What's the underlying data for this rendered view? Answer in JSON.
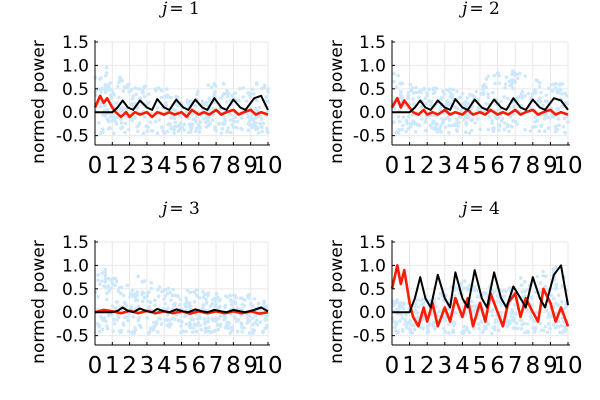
{
  "chart_data": [
    {
      "type": "scatter+line",
      "title": "j = 1",
      "title_j": "j",
      "title_eq": "= 1",
      "ylabel": "normed power",
      "xlim": [
        0,
        10
      ],
      "ylim": [
        -0.7,
        1.5
      ],
      "yticks": [
        "-0.5",
        "0.0",
        "0.5",
        "1.0",
        "1.5"
      ],
      "ytick_values": [
        -0.5,
        0.0,
        0.5,
        1.0,
        1.5
      ],
      "xticks": [
        "0",
        "1",
        "2",
        "3",
        "4",
        "5",
        "6",
        "7",
        "8",
        "9",
        "10"
      ],
      "grid": true,
      "scatter_envelope": [
        [
          0.2,
          1.0
        ],
        [
          0.5,
          1.2
        ],
        [
          1.0,
          0.5
        ],
        [
          1.5,
          0.8
        ],
        [
          2.0,
          0.6
        ],
        [
          2.5,
          0.5
        ],
        [
          3.0,
          0.6
        ],
        [
          3.5,
          0.5
        ],
        [
          4.0,
          0.6
        ],
        [
          4.5,
          0.5
        ],
        [
          5.0,
          0.4
        ],
        [
          5.5,
          0.3
        ],
        [
          6.0,
          0.5
        ],
        [
          6.5,
          0.6
        ],
        [
          7.0,
          0.7
        ],
        [
          7.5,
          0.6
        ],
        [
          8.0,
          0.5
        ],
        [
          8.5,
          0.6
        ],
        [
          9.0,
          0.5
        ],
        [
          9.5,
          0.7
        ],
        [
          10.0,
          0.5
        ]
      ],
      "model_curve": [
        [
          0.0,
          0.0
        ],
        [
          1.0,
          0.0
        ],
        [
          1.3,
          0.1
        ],
        [
          1.6,
          0.25
        ],
        [
          1.9,
          0.1
        ],
        [
          2.2,
          0.05
        ],
        [
          2.6,
          0.25
        ],
        [
          3.0,
          0.1
        ],
        [
          3.3,
          0.05
        ],
        [
          3.6,
          0.28
        ],
        [
          4.0,
          0.1
        ],
        [
          4.3,
          0.05
        ],
        [
          4.7,
          0.27
        ],
        [
          5.1,
          0.1
        ],
        [
          5.4,
          0.05
        ],
        [
          5.8,
          0.27
        ],
        [
          6.2,
          0.1
        ],
        [
          6.5,
          0.05
        ],
        [
          6.9,
          0.3
        ],
        [
          7.3,
          0.1
        ],
        [
          7.6,
          0.05
        ],
        [
          8.0,
          0.27
        ],
        [
          8.4,
          0.1
        ],
        [
          8.7,
          0.05
        ],
        [
          9.2,
          0.3
        ],
        [
          9.6,
          0.35
        ],
        [
          10.0,
          0.05
        ]
      ],
      "measured_curve": [
        [
          0.0,
          0.1
        ],
        [
          0.3,
          0.35
        ],
        [
          0.5,
          0.2
        ],
        [
          0.7,
          0.3
        ],
        [
          1.0,
          0.1
        ],
        [
          1.2,
          0.0
        ],
        [
          1.5,
          -0.1
        ],
        [
          1.8,
          0.0
        ],
        [
          2.0,
          -0.1
        ],
        [
          2.3,
          0.0
        ],
        [
          2.6,
          -0.05
        ],
        [
          3.0,
          0.0
        ],
        [
          3.3,
          -0.1
        ],
        [
          3.6,
          0.0
        ],
        [
          4.0,
          -0.05
        ],
        [
          4.3,
          0.0
        ],
        [
          4.6,
          -0.05
        ],
        [
          5.0,
          0.0
        ],
        [
          5.3,
          -0.1
        ],
        [
          5.6,
          0.05
        ],
        [
          6.0,
          -0.05
        ],
        [
          6.3,
          0.0
        ],
        [
          6.6,
          -0.05
        ],
        [
          7.0,
          0.05
        ],
        [
          7.3,
          -0.05
        ],
        [
          7.6,
          0.0
        ],
        [
          8.0,
          0.05
        ],
        [
          8.3,
          -0.05
        ],
        [
          8.6,
          0.0
        ],
        [
          9.0,
          0.05
        ],
        [
          9.3,
          -0.05
        ],
        [
          9.6,
          0.0
        ],
        [
          10.0,
          -0.05
        ]
      ]
    },
    {
      "type": "scatter+line",
      "title": "j = 2",
      "title_j": "j",
      "title_eq": "= 2",
      "ylabel": "normed power",
      "xlim": [
        0,
        10
      ],
      "ylim": [
        -0.7,
        1.5
      ],
      "yticks": [
        "-0.5",
        "0.0",
        "0.5",
        "1.0",
        "1.5"
      ],
      "ytick_values": [
        -0.5,
        0.0,
        0.5,
        1.0,
        1.5
      ],
      "xticks": [
        "0",
        "1",
        "2",
        "3",
        "4",
        "5",
        "6",
        "7",
        "8",
        "9",
        "10"
      ],
      "grid": true,
      "scatter_envelope": [
        [
          0.2,
          0.9
        ],
        [
          0.5,
          0.8
        ],
        [
          1.0,
          0.6
        ],
        [
          1.5,
          0.7
        ],
        [
          2.0,
          0.5
        ],
        [
          2.5,
          0.6
        ],
        [
          3.0,
          0.5
        ],
        [
          3.5,
          0.5
        ],
        [
          4.0,
          0.5
        ],
        [
          4.5,
          0.4
        ],
        [
          5.0,
          0.5
        ],
        [
          5.5,
          0.8
        ],
        [
          6.0,
          0.9
        ],
        [
          6.5,
          0.8
        ],
        [
          7.0,
          1.0
        ],
        [
          7.5,
          0.9
        ],
        [
          8.0,
          0.7
        ],
        [
          8.5,
          0.7
        ],
        [
          9.0,
          0.6
        ],
        [
          9.5,
          0.7
        ],
        [
          10.0,
          0.5
        ]
      ],
      "model_curve": [
        [
          0.0,
          0.0
        ],
        [
          1.0,
          0.0
        ],
        [
          1.3,
          0.1
        ],
        [
          1.6,
          0.25
        ],
        [
          1.9,
          0.1
        ],
        [
          2.2,
          0.05
        ],
        [
          2.6,
          0.25
        ],
        [
          3.0,
          0.1
        ],
        [
          3.3,
          0.05
        ],
        [
          3.6,
          0.28
        ],
        [
          4.0,
          0.1
        ],
        [
          4.3,
          0.05
        ],
        [
          4.7,
          0.27
        ],
        [
          5.1,
          0.1
        ],
        [
          5.4,
          0.05
        ],
        [
          5.8,
          0.27
        ],
        [
          6.2,
          0.1
        ],
        [
          6.5,
          0.05
        ],
        [
          6.9,
          0.3
        ],
        [
          7.3,
          0.1
        ],
        [
          7.6,
          0.05
        ],
        [
          8.0,
          0.27
        ],
        [
          8.4,
          0.1
        ],
        [
          8.7,
          0.05
        ],
        [
          9.2,
          0.3
        ],
        [
          9.6,
          0.25
        ],
        [
          10.0,
          0.05
        ]
      ],
      "measured_curve": [
        [
          0.0,
          0.1
        ],
        [
          0.3,
          0.3
        ],
        [
          0.5,
          0.1
        ],
        [
          0.7,
          0.25
        ],
        [
          1.0,
          0.1
        ],
        [
          1.2,
          0.0
        ],
        [
          1.5,
          -0.05
        ],
        [
          1.8,
          0.05
        ],
        [
          2.0,
          -0.05
        ],
        [
          2.3,
          0.0
        ],
        [
          2.6,
          -0.05
        ],
        [
          3.0,
          0.05
        ],
        [
          3.3,
          -0.05
        ],
        [
          3.6,
          0.0
        ],
        [
          4.0,
          -0.05
        ],
        [
          4.3,
          0.05
        ],
        [
          4.6,
          -0.05
        ],
        [
          5.0,
          0.0
        ],
        [
          5.3,
          -0.05
        ],
        [
          5.6,
          0.05
        ],
        [
          6.0,
          -0.05
        ],
        [
          6.3,
          0.0
        ],
        [
          6.6,
          -0.05
        ],
        [
          7.0,
          0.05
        ],
        [
          7.3,
          -0.05
        ],
        [
          7.6,
          0.0
        ],
        [
          8.0,
          0.05
        ],
        [
          8.3,
          -0.05
        ],
        [
          8.6,
          0.0
        ],
        [
          9.0,
          0.05
        ],
        [
          9.3,
          -0.05
        ],
        [
          9.6,
          0.0
        ],
        [
          10.0,
          -0.05
        ]
      ]
    },
    {
      "type": "scatter+line",
      "title": "j = 3",
      "title_j": "j",
      "title_eq": "= 3",
      "ylabel": "normed power",
      "xlim": [
        0,
        10
      ],
      "ylim": [
        -0.7,
        1.5
      ],
      "yticks": [
        "-0.5",
        "0.0",
        "0.5",
        "1.0",
        "1.5"
      ],
      "ytick_values": [
        -0.5,
        0.0,
        0.5,
        1.0,
        1.5
      ],
      "xticks": [
        "0",
        "1",
        "2",
        "3",
        "4",
        "5",
        "6",
        "7",
        "8",
        "9",
        "10"
      ],
      "grid": true,
      "scatter_envelope": [
        [
          0.2,
          0.9
        ],
        [
          0.5,
          1.0
        ],
        [
          1.0,
          0.8
        ],
        [
          1.5,
          0.8
        ],
        [
          2.0,
          0.7
        ],
        [
          2.5,
          0.9
        ],
        [
          3.0,
          0.6
        ],
        [
          3.5,
          0.8
        ],
        [
          4.0,
          0.5
        ],
        [
          4.5,
          0.6
        ],
        [
          5.0,
          0.4
        ],
        [
          5.5,
          0.5
        ],
        [
          6.0,
          0.5
        ],
        [
          6.5,
          0.4
        ],
        [
          7.0,
          0.5
        ],
        [
          7.5,
          0.4
        ],
        [
          8.0,
          0.4
        ],
        [
          8.5,
          0.3
        ],
        [
          9.0,
          0.4
        ],
        [
          9.5,
          0.3
        ],
        [
          10.0,
          0.2
        ]
      ],
      "model_curve": [
        [
          0.0,
          0.0
        ],
        [
          1.0,
          0.0
        ],
        [
          1.3,
          0.03
        ],
        [
          1.6,
          0.1
        ],
        [
          1.9,
          0.03
        ],
        [
          2.2,
          0.0
        ],
        [
          2.6,
          0.08
        ],
        [
          3.0,
          0.02
        ],
        [
          3.3,
          0.0
        ],
        [
          3.6,
          0.07
        ],
        [
          4.0,
          0.02
        ],
        [
          4.3,
          0.0
        ],
        [
          4.7,
          0.06
        ],
        [
          5.1,
          0.02
        ],
        [
          5.4,
          0.0
        ],
        [
          5.8,
          0.06
        ],
        [
          6.2,
          0.02
        ],
        [
          6.5,
          0.0
        ],
        [
          6.9,
          0.05
        ],
        [
          7.3,
          0.02
        ],
        [
          7.6,
          0.0
        ],
        [
          8.0,
          0.05
        ],
        [
          8.4,
          0.02
        ],
        [
          8.7,
          0.0
        ],
        [
          9.2,
          0.05
        ],
        [
          9.6,
          0.1
        ],
        [
          10.0,
          0.02
        ]
      ],
      "measured_curve": [
        [
          0.0,
          0.0
        ],
        [
          0.5,
          0.05
        ],
        [
          1.0,
          0.02
        ],
        [
          1.5,
          -0.02
        ],
        [
          2.0,
          0.03
        ],
        [
          2.5,
          -0.02
        ],
        [
          3.0,
          0.03
        ],
        [
          3.5,
          -0.02
        ],
        [
          4.0,
          0.02
        ],
        [
          4.5,
          -0.02
        ],
        [
          5.0,
          0.02
        ],
        [
          5.5,
          -0.03
        ],
        [
          6.0,
          0.02
        ],
        [
          6.5,
          -0.02
        ],
        [
          7.0,
          0.02
        ],
        [
          7.5,
          -0.02
        ],
        [
          8.0,
          0.02
        ],
        [
          8.5,
          -0.02
        ],
        [
          9.0,
          0.02
        ],
        [
          9.5,
          -0.03
        ],
        [
          10.0,
          0.0
        ]
      ]
    },
    {
      "type": "scatter+line",
      "title": "j = 4",
      "title_j": "j",
      "title_eq": "= 4",
      "ylabel": "normed power",
      "xlim": [
        0,
        10
      ],
      "ylim": [
        -0.7,
        1.5
      ],
      "yticks": [
        "-0.5",
        "0.0",
        "0.5",
        "1.0",
        "1.5"
      ],
      "ytick_values": [
        -0.5,
        0.0,
        0.5,
        1.0,
        1.5
      ],
      "xticks": [
        "0",
        "1",
        "2",
        "3",
        "4",
        "5",
        "6",
        "7",
        "8",
        "9",
        "10"
      ],
      "grid": true,
      "scatter_envelope": [
        [
          0.2,
          0.3
        ],
        [
          0.5,
          0.2
        ],
        [
          1.0,
          0.2
        ],
        [
          1.5,
          0.3
        ],
        [
          2.0,
          0.4
        ],
        [
          2.5,
          0.3
        ],
        [
          3.0,
          0.5
        ],
        [
          3.5,
          0.6
        ],
        [
          4.0,
          0.7
        ],
        [
          4.5,
          0.6
        ],
        [
          5.0,
          0.5
        ],
        [
          5.5,
          0.6
        ],
        [
          6.0,
          0.7
        ],
        [
          6.5,
          0.6
        ],
        [
          7.0,
          0.8
        ],
        [
          7.5,
          0.7
        ],
        [
          8.0,
          0.6
        ],
        [
          8.5,
          1.0
        ],
        [
          9.0,
          0.9
        ],
        [
          9.5,
          1.1
        ],
        [
          10.0,
          0.6
        ]
      ],
      "model_curve": [
        [
          0.0,
          0.0
        ],
        [
          1.0,
          0.0
        ],
        [
          1.3,
          0.3
        ],
        [
          1.6,
          0.75
        ],
        [
          1.9,
          0.3
        ],
        [
          2.2,
          0.1
        ],
        [
          2.6,
          0.8
        ],
        [
          3.0,
          0.3
        ],
        [
          3.3,
          0.1
        ],
        [
          3.6,
          0.85
        ],
        [
          4.0,
          0.3
        ],
        [
          4.3,
          0.1
        ],
        [
          4.7,
          0.9
        ],
        [
          5.1,
          0.3
        ],
        [
          5.4,
          0.1
        ],
        [
          5.8,
          0.85
        ],
        [
          6.2,
          0.3
        ],
        [
          6.5,
          0.1
        ],
        [
          6.9,
          0.55
        ],
        [
          7.3,
          0.3
        ],
        [
          7.6,
          0.1
        ],
        [
          8.0,
          0.75
        ],
        [
          8.4,
          0.3
        ],
        [
          8.7,
          0.1
        ],
        [
          9.2,
          0.8
        ],
        [
          9.6,
          1.0
        ],
        [
          10.0,
          0.15
        ]
      ],
      "measured_curve": [
        [
          0.0,
          0.5
        ],
        [
          0.3,
          1.0
        ],
        [
          0.5,
          0.6
        ],
        [
          0.7,
          0.9
        ],
        [
          1.0,
          0.2
        ],
        [
          1.2,
          -0.1
        ],
        [
          1.5,
          -0.3
        ],
        [
          1.8,
          0.1
        ],
        [
          2.0,
          -0.2
        ],
        [
          2.3,
          0.2
        ],
        [
          2.6,
          -0.3
        ],
        [
          3.0,
          0.1
        ],
        [
          3.3,
          -0.2
        ],
        [
          3.6,
          0.3
        ],
        [
          4.0,
          -0.1
        ],
        [
          4.3,
          0.3
        ],
        [
          4.6,
          -0.3
        ],
        [
          5.0,
          0.2
        ],
        [
          5.3,
          -0.2
        ],
        [
          5.6,
          0.4
        ],
        [
          6.0,
          0.0
        ],
        [
          6.3,
          -0.3
        ],
        [
          6.6,
          0.2
        ],
        [
          7.0,
          0.4
        ],
        [
          7.3,
          -0.1
        ],
        [
          7.6,
          0.3
        ],
        [
          8.0,
          0.0
        ],
        [
          8.3,
          -0.2
        ],
        [
          8.6,
          0.5
        ],
        [
          9.0,
          0.2
        ],
        [
          9.3,
          -0.2
        ],
        [
          9.6,
          0.1
        ],
        [
          10.0,
          -0.3
        ]
      ]
    }
  ],
  "colors": {
    "scatter": "#cde8fb",
    "model": "#000000",
    "measured": "#ff1a00",
    "grid": "#e8e8e8",
    "axis": "#000000"
  }
}
